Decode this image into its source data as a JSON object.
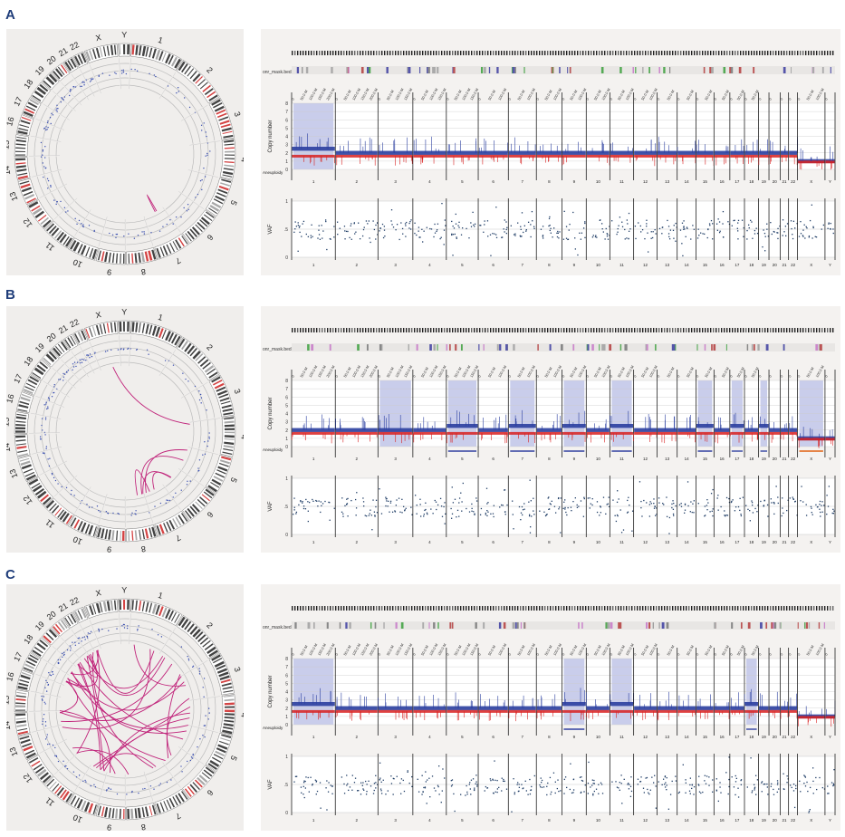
{
  "chromosomes": [
    "1",
    "2",
    "3",
    "4",
    "5",
    "6",
    "7",
    "8",
    "9",
    "10",
    "11",
    "12",
    "13",
    "14",
    "15",
    "16",
    "17",
    "18",
    "19",
    "20",
    "21",
    "22",
    "X",
    "Y"
  ],
  "track_label": "onr_mask.bed",
  "copy_number_label": "Copy number",
  "aneuploidy_label": "Aneuploidy",
  "vaf_label": "VAF",
  "cn_ticks": [
    "0",
    "1",
    "2",
    "3",
    "4",
    "5",
    "6",
    "7",
    "8"
  ],
  "vaf_ticks": [
    "0",
    ".5",
    "1"
  ],
  "top_tick_labels": [
    "0",
    "50.0 M",
    "100.0 M",
    "150.0 M",
    "200.0 M"
  ],
  "colors": {
    "copy_blue": "#2b3fa0",
    "copy_red": "#d82020",
    "highlight": "#bcc0e6",
    "sv_line": "#c0237a",
    "panel_letter": "#1f3d7a"
  },
  "panels": [
    {
      "letter": "A",
      "highlights": [
        "1"
      ],
      "aneuploidy": [],
      "sv_count": 1
    },
    {
      "letter": "B",
      "highlights": [
        "3",
        "5",
        "7",
        "9",
        "11",
        "15",
        "17",
        "19",
        "X"
      ],
      "aneuploidy": [
        "5",
        "7",
        "9",
        "11",
        "15",
        "17",
        "19",
        "X"
      ],
      "sv_count": 6
    },
    {
      "letter": "C",
      "highlights": [
        "1",
        "9",
        "11",
        "18"
      ],
      "aneuploidy": [
        "9",
        "18"
      ],
      "sv_count": 30
    }
  ]
}
